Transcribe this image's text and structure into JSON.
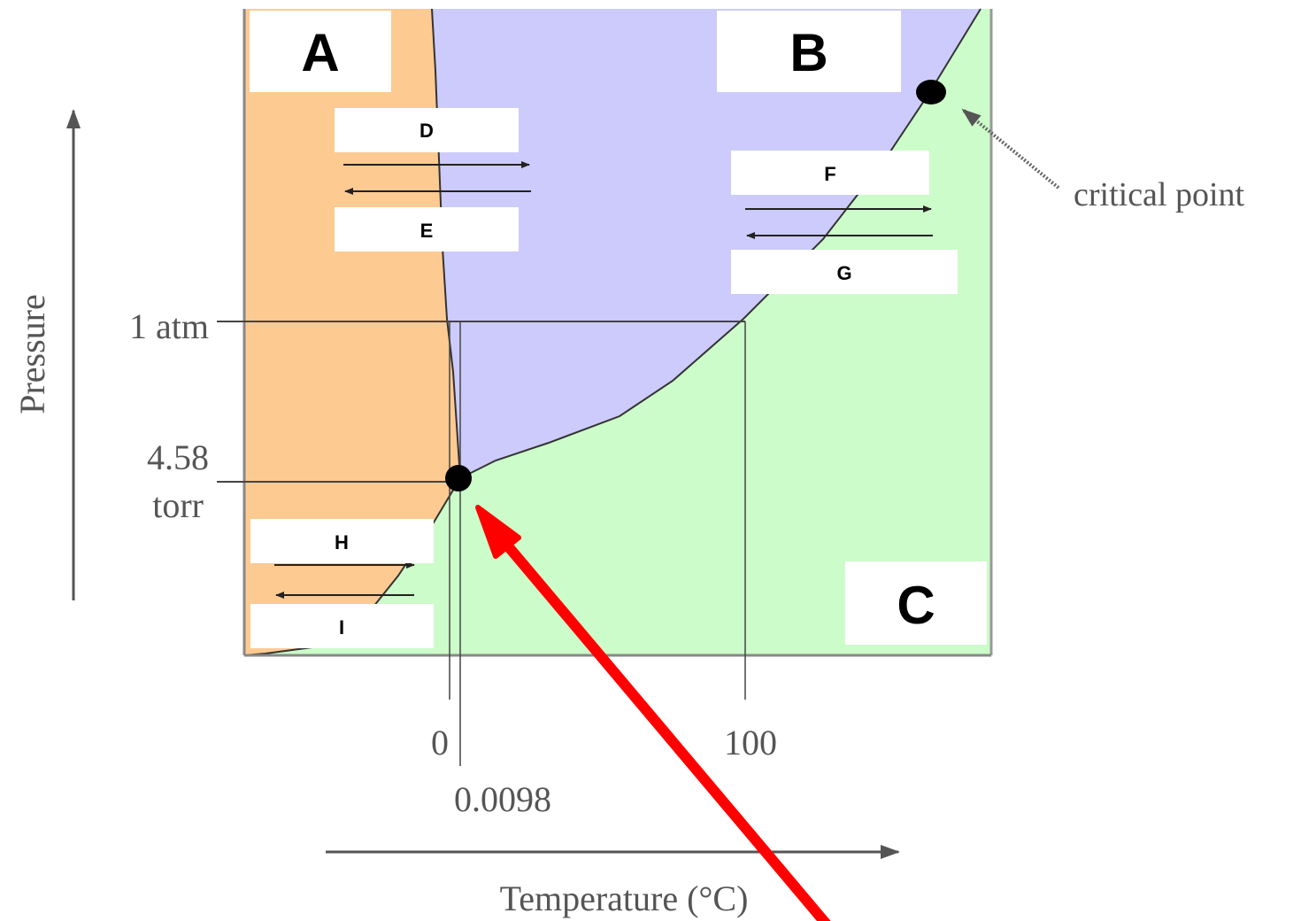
{
  "regions": {
    "solid": {
      "label": "A",
      "color": "#fdca92"
    },
    "liquid": {
      "label": "B",
      "color": "#cccbfb"
    },
    "gas": {
      "label": "C",
      "color": "#ccfcc9"
    }
  },
  "transitions": {
    "solid_liquid_top": "D",
    "solid_liquid_bottom": "E",
    "liquid_gas_top": "F",
    "liquid_gas_bottom": "G",
    "solid_gas_top": "H",
    "solid_gas_bottom": "I"
  },
  "axes": {
    "y_label": "Pressure",
    "x_label": "Temperature (°C)",
    "pressure_1atm": "1 atm",
    "pressure_triple_line1": "4.58",
    "pressure_triple_line2": "torr",
    "temp_0": "0",
    "temp_triple": "0.0098",
    "temp_100": "100"
  },
  "annotations": {
    "critical_point": "critical point"
  },
  "colors": {
    "pointer_arrow": "#ff0000",
    "curve": "#333333",
    "axis": "#555555"
  }
}
